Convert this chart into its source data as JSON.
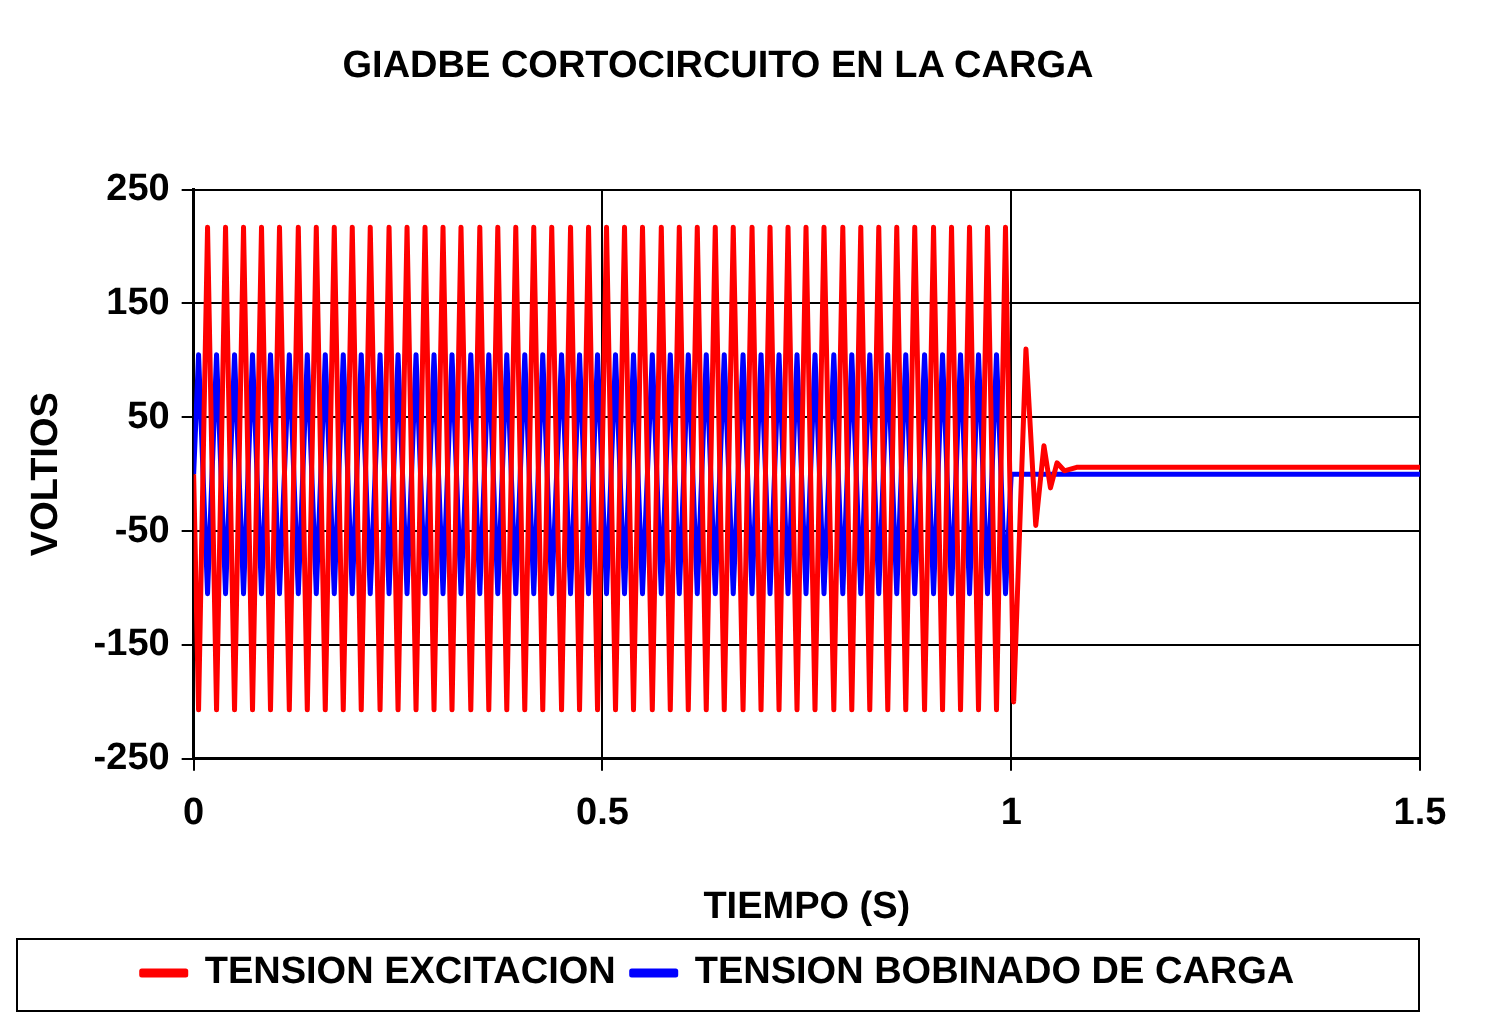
{
  "chart_data": {
    "type": "line",
    "title": "GIADBE CORTOCIRCUITO EN LA CARGA",
    "xlabel": "TIEMPO (S)",
    "ylabel": "VOLTIOS",
    "xlim": [
      0,
      1.5
    ],
    "xticks": [
      0,
      0.5,
      1,
      1.5
    ],
    "ylim": [
      -250,
      250
    ],
    "yticks": [
      -250,
      -150,
      -50,
      50,
      150,
      250
    ],
    "grid": true,
    "legend": "bottom",
    "marker": "none",
    "line_style": "solid",
    "series": [
      {
        "name": "TENSION EXCITACION",
        "color": "#ff0000",
        "x": [
          0,
          0.006,
          0.017,
          0.028,
          0.039,
          0.05,
          0.061,
          0.072,
          0.083,
          0.094,
          0.105,
          0.117,
          0.128,
          0.139,
          0.15,
          0.161,
          0.172,
          0.183,
          0.194,
          0.205,
          0.216,
          0.228,
          0.239,
          0.25,
          0.261,
          0.272,
          0.283,
          0.294,
          0.305,
          0.316,
          0.327,
          0.339,
          0.35,
          0.361,
          0.372,
          0.383,
          0.394,
          0.405,
          0.416,
          0.427,
          0.438,
          0.45,
          0.461,
          0.472,
          0.483,
          0.494,
          0.505,
          0.516,
          0.527,
          0.538,
          0.549,
          0.561,
          0.572,
          0.583,
          0.594,
          0.605,
          0.616,
          0.627,
          0.638,
          0.649,
          0.66,
          0.672,
          0.683,
          0.694,
          0.705,
          0.716,
          0.727,
          0.738,
          0.749,
          0.76,
          0.771,
          0.783,
          0.794,
          0.805,
          0.816,
          0.827,
          0.838,
          0.849,
          0.86,
          0.871,
          0.882,
          0.894,
          0.905,
          0.916,
          0.927,
          0.938,
          0.949,
          0.96,
          0.971,
          0.982,
          0.993,
          1.003,
          1.018,
          1.03,
          1.04,
          1.048,
          1.056,
          1.065,
          1.08,
          1.5
        ],
        "values": [
          0,
          -207,
          217,
          -207,
          217,
          -207,
          217,
          -207,
          217,
          -207,
          217,
          -207,
          217,
          -207,
          217,
          -207,
          217,
          -207,
          217,
          -207,
          217,
          -207,
          217,
          -207,
          217,
          -207,
          217,
          -207,
          217,
          -207,
          217,
          -207,
          217,
          -207,
          217,
          -207,
          217,
          -207,
          217,
          -207,
          217,
          -207,
          217,
          -207,
          217,
          -207,
          217,
          -207,
          217,
          -207,
          217,
          -207,
          217,
          -207,
          217,
          -207,
          217,
          -207,
          217,
          -207,
          217,
          -207,
          217,
          -207,
          217,
          -207,
          217,
          -207,
          217,
          -207,
          217,
          -207,
          217,
          -207,
          217,
          -207,
          217,
          -207,
          217,
          -207,
          217,
          -207,
          217,
          -207,
          217,
          -207,
          217,
          -207,
          217,
          -207,
          217,
          -200,
          110,
          -45,
          25,
          -12,
          10,
          3,
          6,
          6
        ]
      },
      {
        "name": "TENSION BOBINADO DE CARGA",
        "color": "#0000ff",
        "x": [
          0,
          0.006,
          0.017,
          0.028,
          0.039,
          0.05,
          0.061,
          0.072,
          0.083,
          0.094,
          0.105,
          0.117,
          0.128,
          0.139,
          0.15,
          0.161,
          0.172,
          0.183,
          0.194,
          0.205,
          0.216,
          0.228,
          0.239,
          0.25,
          0.261,
          0.272,
          0.283,
          0.294,
          0.305,
          0.316,
          0.327,
          0.339,
          0.35,
          0.361,
          0.372,
          0.383,
          0.394,
          0.405,
          0.416,
          0.427,
          0.438,
          0.45,
          0.461,
          0.472,
          0.483,
          0.494,
          0.505,
          0.516,
          0.527,
          0.538,
          0.549,
          0.561,
          0.572,
          0.583,
          0.594,
          0.605,
          0.616,
          0.627,
          0.638,
          0.649,
          0.66,
          0.672,
          0.683,
          0.694,
          0.705,
          0.716,
          0.727,
          0.738,
          0.749,
          0.76,
          0.771,
          0.783,
          0.794,
          0.805,
          0.816,
          0.827,
          0.838,
          0.849,
          0.86,
          0.871,
          0.882,
          0.894,
          0.905,
          0.916,
          0.927,
          0.938,
          0.949,
          0.96,
          0.971,
          0.982,
          0.993,
          1.0,
          1.5
        ],
        "values": [
          0,
          105,
          -105,
          105,
          -105,
          105,
          -105,
          105,
          -105,
          105,
          -105,
          105,
          -105,
          105,
          -105,
          105,
          -105,
          105,
          -105,
          105,
          -105,
          105,
          -105,
          105,
          -105,
          105,
          -105,
          105,
          -105,
          105,
          -105,
          105,
          -105,
          105,
          -105,
          105,
          -105,
          105,
          -105,
          105,
          -105,
          105,
          -105,
          105,
          -105,
          105,
          -105,
          105,
          -105,
          105,
          -105,
          105,
          -105,
          105,
          -105,
          105,
          -105,
          105,
          -105,
          105,
          -105,
          105,
          -105,
          105,
          -105,
          105,
          -105,
          105,
          -105,
          105,
          -105,
          105,
          -105,
          105,
          -105,
          105,
          -105,
          105,
          -105,
          105,
          -105,
          105,
          -105,
          105,
          -105,
          105,
          -105,
          105,
          -105,
          105,
          -105,
          0,
          0
        ]
      }
    ]
  }
}
